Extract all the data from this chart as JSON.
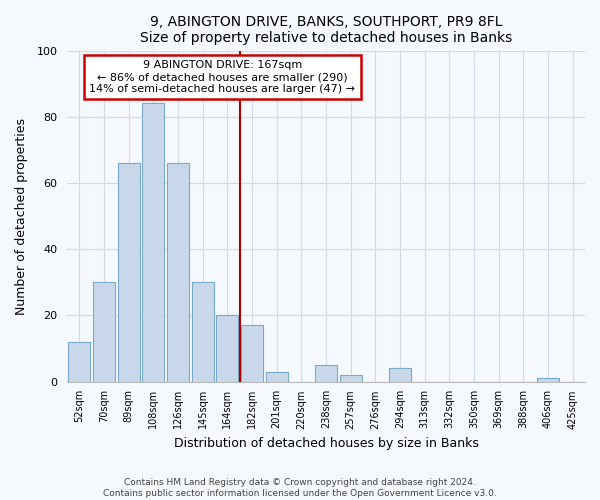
{
  "title": "9, ABINGTON DRIVE, BANKS, SOUTHPORT, PR9 8FL",
  "subtitle": "Size of property relative to detached houses in Banks",
  "xlabel": "Distribution of detached houses by size in Banks",
  "ylabel": "Number of detached properties",
  "categories": [
    "52sqm",
    "70sqm",
    "89sqm",
    "108sqm",
    "126sqm",
    "145sqm",
    "164sqm",
    "182sqm",
    "201sqm",
    "220sqm",
    "238sqm",
    "257sqm",
    "276sqm",
    "294sqm",
    "313sqm",
    "332sqm",
    "350sqm",
    "369sqm",
    "388sqm",
    "406sqm",
    "425sqm"
  ],
  "values": [
    12,
    30,
    66,
    84,
    66,
    30,
    20,
    17,
    3,
    0,
    5,
    2,
    0,
    4,
    0,
    0,
    0,
    0,
    0,
    1,
    0
  ],
  "bar_color": "#c8d8ea",
  "bar_edge_color": "#7aaac8",
  "vline_index": 6,
  "vline_color": "#aa0000",
  "annotation_title": "9 ABINGTON DRIVE: 167sqm",
  "annotation_line1": "← 86% of detached houses are smaller (290)",
  "annotation_line2": "14% of semi-detached houses are larger (47) →",
  "annotation_box_edge": "#cc0000",
  "ylim": [
    0,
    100
  ],
  "yticks": [
    0,
    20,
    40,
    60,
    80,
    100
  ],
  "footnote1": "Contains HM Land Registry data © Crown copyright and database right 2024.",
  "footnote2": "Contains public sector information licensed under the Open Government Licence v3.0.",
  "background_color": "#f5f8fc",
  "grid_color": "#d0dce8"
}
